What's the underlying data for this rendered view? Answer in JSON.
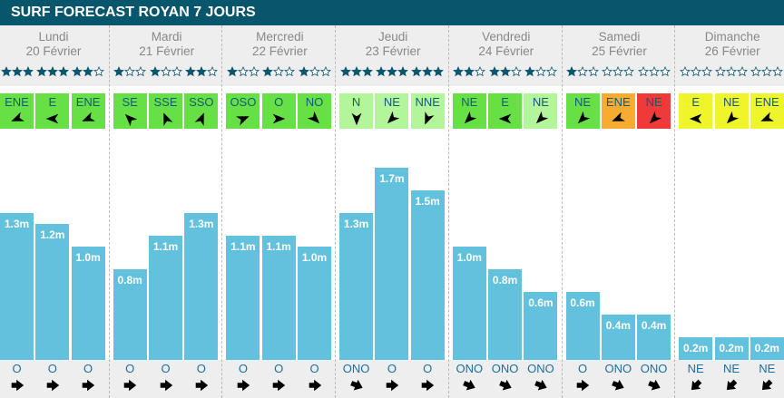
{
  "title": "SURF FORECAST ROYAN 7 JOURS",
  "colors": {
    "good": "#66e044",
    "fair": "#b3f59a",
    "orange": "#f7ab30",
    "red": "#f03a3a",
    "yellow": "#eef52a",
    "bar": "#62c1dc",
    "header": "#08566b"
  },
  "days": [
    {
      "name": "Lundi",
      "date": "20 Février",
      "slots": [
        {
          "stars": 3,
          "wind": "ENE",
          "wind_deg": 67.5,
          "wind_color": "good",
          "height": 1.3,
          "height_label": "1.3m",
          "swell": "O",
          "swell_deg": 270
        },
        {
          "stars": 3,
          "wind": "E",
          "wind_deg": 90,
          "wind_color": "good",
          "height": 1.2,
          "height_label": "1.2m",
          "swell": "O",
          "swell_deg": 270
        },
        {
          "stars": 2,
          "wind": "ENE",
          "wind_deg": 67.5,
          "wind_color": "good",
          "height": 1.0,
          "height_label": "1.0m",
          "swell": "O",
          "swell_deg": 270
        }
      ]
    },
    {
      "name": "Mardi",
      "date": "21 Février",
      "slots": [
        {
          "stars": 1,
          "wind": "SE",
          "wind_deg": 135,
          "wind_color": "good",
          "height": 0.8,
          "height_label": "0.8m",
          "swell": "O",
          "swell_deg": 270
        },
        {
          "stars": 1,
          "wind": "SSE",
          "wind_deg": 157.5,
          "wind_color": "good",
          "height": 1.1,
          "height_label": "1.1m",
          "swell": "O",
          "swell_deg": 270
        },
        {
          "stars": 2,
          "wind": "SSO",
          "wind_deg": 202.5,
          "wind_color": "good",
          "height": 1.3,
          "height_label": "1.3m",
          "swell": "O",
          "swell_deg": 270
        }
      ]
    },
    {
      "name": "Mercredi",
      "date": "22 Février",
      "slots": [
        {
          "stars": 1,
          "wind": "OSO",
          "wind_deg": 247.5,
          "wind_color": "good",
          "height": 1.1,
          "height_label": "1.1m",
          "swell": "O",
          "swell_deg": 270
        },
        {
          "stars": 1,
          "wind": "O",
          "wind_deg": 270,
          "wind_color": "good",
          "height": 1.1,
          "height_label": "1.1m",
          "swell": "O",
          "swell_deg": 270
        },
        {
          "stars": 1,
          "wind": "NO",
          "wind_deg": 315,
          "wind_color": "good",
          "height": 1.0,
          "height_label": "1.0m",
          "swell": "O",
          "swell_deg": 270
        }
      ]
    },
    {
      "name": "Jeudi",
      "date": "23 Février",
      "slots": [
        {
          "stars": 3,
          "wind": "N",
          "wind_deg": 0,
          "wind_color": "fair",
          "height": 1.3,
          "height_label": "1.3m",
          "swell": "ONO",
          "swell_deg": 292.5
        },
        {
          "stars": 3,
          "wind": "NE",
          "wind_deg": 45,
          "wind_color": "fair",
          "height": 1.7,
          "height_label": "1.7m",
          "swell": "O",
          "swell_deg": 270
        },
        {
          "stars": 3,
          "wind": "NNE",
          "wind_deg": 22.5,
          "wind_color": "fair",
          "height": 1.5,
          "height_label": "1.5m",
          "swell": "O",
          "swell_deg": 270
        }
      ]
    },
    {
      "name": "Vendredi",
      "date": "24 Février",
      "slots": [
        {
          "stars": 2,
          "wind": "NE",
          "wind_deg": 45,
          "wind_color": "good",
          "height": 1.0,
          "height_label": "1.0m",
          "swell": "ONO",
          "swell_deg": 292.5
        },
        {
          "stars": 2,
          "wind": "E",
          "wind_deg": 90,
          "wind_color": "good",
          "height": 0.8,
          "height_label": "0.8m",
          "swell": "ONO",
          "swell_deg": 292.5
        },
        {
          "stars": 1,
          "wind": "NE",
          "wind_deg": 45,
          "wind_color": "fair",
          "height": 0.6,
          "height_label": "0.6m",
          "swell": "ONO",
          "swell_deg": 292.5
        }
      ]
    },
    {
      "name": "Samedi",
      "date": "25 Février",
      "slots": [
        {
          "stars": 1,
          "wind": "NE",
          "wind_deg": 45,
          "wind_color": "good",
          "height": 0.6,
          "height_label": "0.6m",
          "swell": "O",
          "swell_deg": 270
        },
        {
          "stars": 0,
          "wind": "ENE",
          "wind_deg": 67.5,
          "wind_color": "orange",
          "height": 0.4,
          "height_label": "0.4m",
          "swell": "ONO",
          "swell_deg": 292.5
        },
        {
          "stars": 0,
          "wind": "NE",
          "wind_deg": 45,
          "wind_color": "red",
          "height": 0.4,
          "height_label": "0.4m",
          "swell": "ONO",
          "swell_deg": 292.5
        }
      ]
    },
    {
      "name": "Dimanche",
      "date": "26 Février",
      "slots": [
        {
          "stars": 0,
          "wind": "E",
          "wind_deg": 90,
          "wind_color": "yellow",
          "height": 0.2,
          "height_label": "0.2m",
          "swell": "NE",
          "swell_deg": 45
        },
        {
          "stars": 0,
          "wind": "NE",
          "wind_deg": 45,
          "wind_color": "yellow",
          "height": 0.2,
          "height_label": "0.2m",
          "swell": "NE",
          "swell_deg": 45
        },
        {
          "stars": 0,
          "wind": "ENE",
          "wind_deg": 67.5,
          "wind_color": "yellow",
          "height": 0.2,
          "height_label": "0.2m",
          "swell": "NE",
          "swell_deg": 45
        }
      ]
    }
  ]
}
